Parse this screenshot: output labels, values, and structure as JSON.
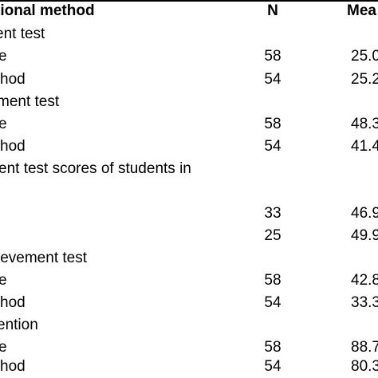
{
  "table": {
    "header": {
      "method": "tional method",
      "n": "N",
      "mean": "Mea"
    },
    "rows": [
      {
        "label": "ent test",
        "n": "",
        "mean": ""
      },
      {
        "label": "e",
        "n": "58",
        "mean": "25.0"
      },
      {
        "label": "hod",
        "n": "54",
        "mean": "25.2"
      },
      {
        "label": "ment test",
        "n": "",
        "mean": ""
      },
      {
        "label": "e",
        "n": "58",
        "mean": "48.3"
      },
      {
        "label": "hod",
        "n": "54",
        "mean": "41.4"
      },
      {
        "label": "ent test scores of students in",
        "n": "",
        "mean": ""
      },
      {
        "label": "",
        "n": "",
        "mean": ""
      },
      {
        "label": "",
        "n": "33",
        "mean": "46.9"
      },
      {
        "label": "",
        "n": "25",
        "mean": "49.9"
      },
      {
        "label": "ievement test",
        "n": "",
        "mean": ""
      },
      {
        "label": "e",
        "n": "58",
        "mean": "42.8"
      },
      {
        "label": "hod",
        "n": "54",
        "mean": "33.3"
      },
      {
        "label": "ention",
        "n": "",
        "mean": ""
      },
      {
        "label": "e",
        "n": "58",
        "mean": "88.7"
      },
      {
        "label": "hod",
        "n": "54",
        "mean": "80.3"
      }
    ]
  }
}
